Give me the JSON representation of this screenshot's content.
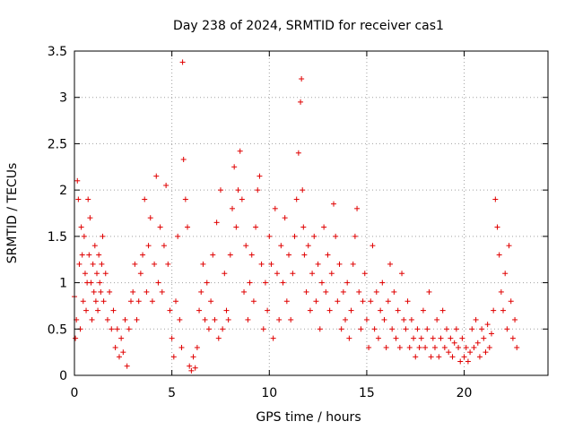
{
  "chart_data": {
    "type": "scatter",
    "title": "Day 238 of 2024, SRMTID for receiver cas1",
    "xlabel": "GPS time / hours",
    "ylabel": "SRMTID / TECUs",
    "xlim": [
      0,
      24.3
    ],
    "ylim": [
      0,
      3.5
    ],
    "x_ticks": [
      0,
      5,
      10,
      15,
      20
    ],
    "x_tick_labels": [
      "0",
      "5",
      "10",
      "15",
      "20"
    ],
    "y_ticks": [
      0,
      0.5,
      1,
      1.5,
      2,
      2.5,
      3,
      3.5
    ],
    "y_tick_labels": [
      "0",
      "0.5",
      "1",
      "1.5",
      "2",
      "2.5",
      "3",
      "3.5"
    ],
    "grid": true,
    "marker": "plus",
    "color": "#e00000",
    "series": [
      {
        "name": "SRMTID",
        "points": [
          [
            0.0,
            0.85
          ],
          [
            0.05,
            0.4
          ],
          [
            0.1,
            0.6
          ],
          [
            0.15,
            2.1
          ],
          [
            0.2,
            1.9
          ],
          [
            0.25,
            1.2
          ],
          [
            0.3,
            0.5
          ],
          [
            0.35,
            1.6
          ],
          [
            0.4,
            1.3
          ],
          [
            0.45,
            0.8
          ],
          [
            0.5,
            1.5
          ],
          [
            0.55,
            1.1
          ],
          [
            0.6,
            0.7
          ],
          [
            0.65,
            1.0
          ],
          [
            0.7,
            1.9
          ],
          [
            0.75,
            1.3
          ],
          [
            0.8,
            1.7
          ],
          [
            0.85,
            1.0
          ],
          [
            0.9,
            0.6
          ],
          [
            0.95,
            1.2
          ],
          [
            1.0,
            0.9
          ],
          [
            1.05,
            1.4
          ],
          [
            1.1,
            0.8
          ],
          [
            1.15,
            1.1
          ],
          [
            1.2,
            0.7
          ],
          [
            1.25,
            1.3
          ],
          [
            1.3,
            1.0
          ],
          [
            1.35,
            0.9
          ],
          [
            1.4,
            1.2
          ],
          [
            1.45,
            1.5
          ],
          [
            1.5,
            0.8
          ],
          [
            1.6,
            1.1
          ],
          [
            1.7,
            0.6
          ],
          [
            1.8,
            0.9
          ],
          [
            1.9,
            0.5
          ],
          [
            2.0,
            0.7
          ],
          [
            2.1,
            0.3
          ],
          [
            2.2,
            0.5
          ],
          [
            2.3,
            0.2
          ],
          [
            2.4,
            0.4
          ],
          [
            2.5,
            0.25
          ],
          [
            2.6,
            0.6
          ],
          [
            2.7,
            0.1
          ],
          [
            2.8,
            0.5
          ],
          [
            2.9,
            0.8
          ],
          [
            3.0,
            0.9
          ],
          [
            3.1,
            1.2
          ],
          [
            3.2,
            0.6
          ],
          [
            3.3,
            0.8
          ],
          [
            3.4,
            1.1
          ],
          [
            3.5,
            1.3
          ],
          [
            3.6,
            1.9
          ],
          [
            3.7,
            0.9
          ],
          [
            3.8,
            1.4
          ],
          [
            3.9,
            1.7
          ],
          [
            4.0,
            0.8
          ],
          [
            4.1,
            1.2
          ],
          [
            4.2,
            2.15
          ],
          [
            4.3,
            1.0
          ],
          [
            4.4,
            1.6
          ],
          [
            4.5,
            0.9
          ],
          [
            4.6,
            1.4
          ],
          [
            4.7,
            2.05
          ],
          [
            4.8,
            1.2
          ],
          [
            4.9,
            0.7
          ],
          [
            5.0,
            0.4
          ],
          [
            5.1,
            0.2
          ],
          [
            5.2,
            0.8
          ],
          [
            5.3,
            1.5
          ],
          [
            5.4,
            0.6
          ],
          [
            5.5,
            0.3
          ],
          [
            5.55,
            3.38
          ],
          [
            5.6,
            2.33
          ],
          [
            5.7,
            1.9
          ],
          [
            5.8,
            1.6
          ],
          [
            5.9,
            0.1
          ],
          [
            6.0,
            0.05
          ],
          [
            6.1,
            0.2
          ],
          [
            6.2,
            0.08
          ],
          [
            6.3,
            0.3
          ],
          [
            6.4,
            0.7
          ],
          [
            6.5,
            0.9
          ],
          [
            6.6,
            1.2
          ],
          [
            6.7,
            0.6
          ],
          [
            6.8,
            1.0
          ],
          [
            6.9,
            0.5
          ],
          [
            7.0,
            0.8
          ],
          [
            7.1,
            1.3
          ],
          [
            7.2,
            0.6
          ],
          [
            7.3,
            1.65
          ],
          [
            7.4,
            0.4
          ],
          [
            7.5,
            2.0
          ],
          [
            7.6,
            0.5
          ],
          [
            7.7,
            1.1
          ],
          [
            7.8,
            0.7
          ],
          [
            7.9,
            0.6
          ],
          [
            8.0,
            1.3
          ],
          [
            8.1,
            1.8
          ],
          [
            8.2,
            2.25
          ],
          [
            8.3,
            1.6
          ],
          [
            8.4,
            2.0
          ],
          [
            8.5,
            2.42
          ],
          [
            8.6,
            1.9
          ],
          [
            8.7,
            0.9
          ],
          [
            8.8,
            1.4
          ],
          [
            8.9,
            0.6
          ],
          [
            9.0,
            1.0
          ],
          [
            9.1,
            1.3
          ],
          [
            9.2,
            0.8
          ],
          [
            9.3,
            1.6
          ],
          [
            9.4,
            2.0
          ],
          [
            9.5,
            2.15
          ],
          [
            9.6,
            1.2
          ],
          [
            9.7,
            0.5
          ],
          [
            9.8,
            1.0
          ],
          [
            9.9,
            0.7
          ],
          [
            10.0,
            1.5
          ],
          [
            10.1,
            1.2
          ],
          [
            10.2,
            0.4
          ],
          [
            10.3,
            1.8
          ],
          [
            10.4,
            1.1
          ],
          [
            10.5,
            0.6
          ],
          [
            10.6,
            1.4
          ],
          [
            10.7,
            1.0
          ],
          [
            10.8,
            1.7
          ],
          [
            10.9,
            0.8
          ],
          [
            11.0,
            1.3
          ],
          [
            11.1,
            0.6
          ],
          [
            11.2,
            1.1
          ],
          [
            11.3,
            1.5
          ],
          [
            11.4,
            1.9
          ],
          [
            11.5,
            2.4
          ],
          [
            11.6,
            2.95
          ],
          [
            11.65,
            3.2
          ],
          [
            11.7,
            2.0
          ],
          [
            11.75,
            1.6
          ],
          [
            11.8,
            1.3
          ],
          [
            11.9,
            0.9
          ],
          [
            12.0,
            1.4
          ],
          [
            12.1,
            0.7
          ],
          [
            12.2,
            1.1
          ],
          [
            12.3,
            1.5
          ],
          [
            12.4,
            0.8
          ],
          [
            12.5,
            1.2
          ],
          [
            12.6,
            0.5
          ],
          [
            12.7,
            1.0
          ],
          [
            12.8,
            1.6
          ],
          [
            12.9,
            0.9
          ],
          [
            13.0,
            1.3
          ],
          [
            13.1,
            0.7
          ],
          [
            13.2,
            1.1
          ],
          [
            13.3,
            1.85
          ],
          [
            13.4,
            1.5
          ],
          [
            13.5,
            0.8
          ],
          [
            13.6,
            1.2
          ],
          [
            13.7,
            0.5
          ],
          [
            13.8,
            0.9
          ],
          [
            13.9,
            0.6
          ],
          [
            14.0,
            1.0
          ],
          [
            14.1,
            0.4
          ],
          [
            14.2,
            0.7
          ],
          [
            14.3,
            1.2
          ],
          [
            14.4,
            1.5
          ],
          [
            14.5,
            1.8
          ],
          [
            14.6,
            0.9
          ],
          [
            14.7,
            0.5
          ],
          [
            14.8,
            0.8
          ],
          [
            14.9,
            1.1
          ],
          [
            15.0,
            0.6
          ],
          [
            15.1,
            0.3
          ],
          [
            15.2,
            0.8
          ],
          [
            15.3,
            1.4
          ],
          [
            15.4,
            0.5
          ],
          [
            15.5,
            0.9
          ],
          [
            15.6,
            0.4
          ],
          [
            15.7,
            0.7
          ],
          [
            15.8,
            1.0
          ],
          [
            15.9,
            0.6
          ],
          [
            16.0,
            0.3
          ],
          [
            16.1,
            0.8
          ],
          [
            16.2,
            1.2
          ],
          [
            16.3,
            0.5
          ],
          [
            16.4,
            0.9
          ],
          [
            16.5,
            0.4
          ],
          [
            16.6,
            0.7
          ],
          [
            16.7,
            0.3
          ],
          [
            16.8,
            1.1
          ],
          [
            16.9,
            0.6
          ],
          [
            17.0,
            0.5
          ],
          [
            17.1,
            0.8
          ],
          [
            17.2,
            0.3
          ],
          [
            17.3,
            0.6
          ],
          [
            17.4,
            0.4
          ],
          [
            17.5,
            0.2
          ],
          [
            17.6,
            0.5
          ],
          [
            17.7,
            0.3
          ],
          [
            17.8,
            0.4
          ],
          [
            17.9,
            0.7
          ],
          [
            18.0,
            0.3
          ],
          [
            18.1,
            0.5
          ],
          [
            18.2,
            0.9
          ],
          [
            18.3,
            0.2
          ],
          [
            18.4,
            0.4
          ],
          [
            18.5,
            0.3
          ],
          [
            18.6,
            0.6
          ],
          [
            18.7,
            0.2
          ],
          [
            18.8,
            0.4
          ],
          [
            18.9,
            0.7
          ],
          [
            19.0,
            0.3
          ],
          [
            19.1,
            0.5
          ],
          [
            19.2,
            0.25
          ],
          [
            19.3,
            0.4
          ],
          [
            19.4,
            0.2
          ],
          [
            19.5,
            0.35
          ],
          [
            19.6,
            0.5
          ],
          [
            19.7,
            0.3
          ],
          [
            19.8,
            0.15
          ],
          [
            19.9,
            0.4
          ],
          [
            20.0,
            0.2
          ],
          [
            20.1,
            0.3
          ],
          [
            20.2,
            0.15
          ],
          [
            20.3,
            0.25
          ],
          [
            20.4,
            0.5
          ],
          [
            20.5,
            0.3
          ],
          [
            20.6,
            0.6
          ],
          [
            20.7,
            0.35
          ],
          [
            20.8,
            0.2
          ],
          [
            20.9,
            0.5
          ],
          [
            21.0,
            0.4
          ],
          [
            21.1,
            0.25
          ],
          [
            21.2,
            0.55
          ],
          [
            21.3,
            0.3
          ],
          [
            21.4,
            0.45
          ],
          [
            21.5,
            0.7
          ],
          [
            21.6,
            1.9
          ],
          [
            21.7,
            1.6
          ],
          [
            21.8,
            1.3
          ],
          [
            21.9,
            0.9
          ],
          [
            22.0,
            0.7
          ],
          [
            22.1,
            1.1
          ],
          [
            22.2,
            0.5
          ],
          [
            22.3,
            1.4
          ],
          [
            22.4,
            0.8
          ],
          [
            22.5,
            0.4
          ],
          [
            22.6,
            0.6
          ],
          [
            22.7,
            0.3
          ]
        ]
      }
    ]
  }
}
